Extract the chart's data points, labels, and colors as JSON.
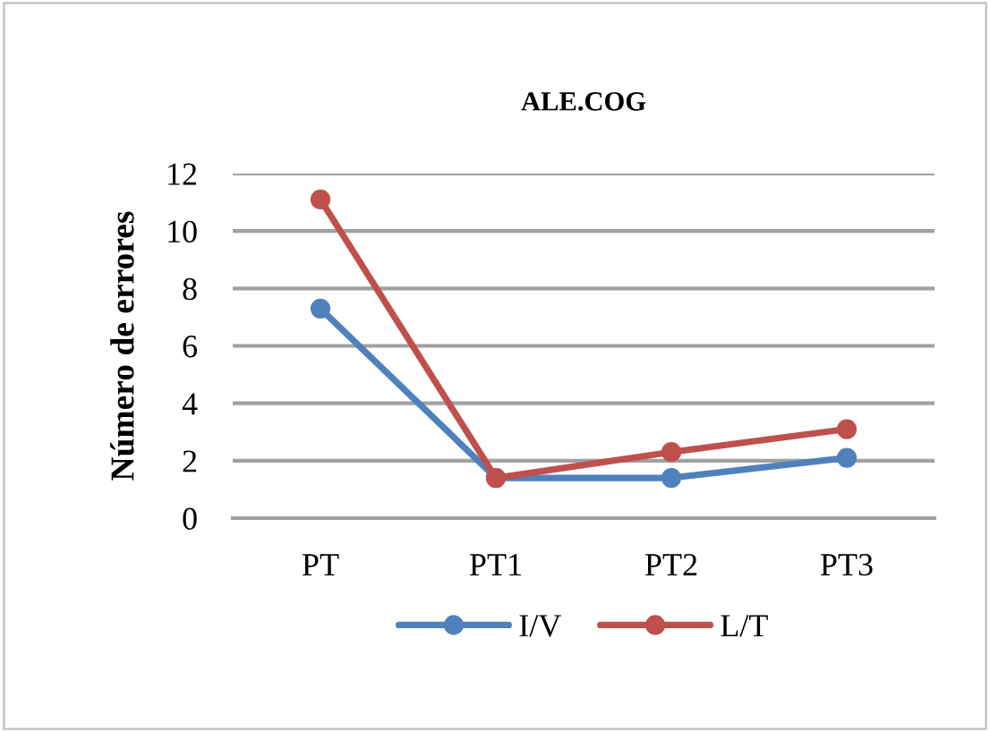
{
  "chart_data": {
    "type": "line",
    "title": "ALE.COG",
    "ylabel": "Número de errores",
    "categories": [
      "PT",
      "PT1",
      "PT2",
      "PT3"
    ],
    "series": [
      {
        "name": "I/V",
        "color": "#4f81bd",
        "values": [
          7.3,
          1.4,
          1.4,
          2.1
        ]
      },
      {
        "name": "L/T",
        "color": "#c0504d",
        "values": [
          11.1,
          1.4,
          2.3,
          3.1
        ]
      }
    ],
    "ylim": [
      0,
      12
    ],
    "yticks": [
      0,
      2,
      4,
      6,
      8,
      10,
      12
    ],
    "grid": "y",
    "legend": "bottom",
    "marker": "circle",
    "line_style": "solid"
  }
}
